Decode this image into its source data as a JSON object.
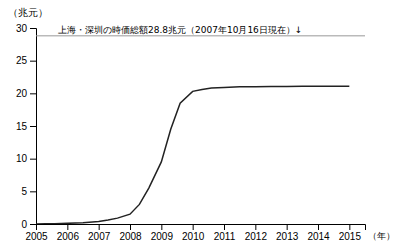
{
  "chart_data": {
    "type": "line",
    "x": [
      2005,
      2005.3,
      2005.6,
      2006,
      2006.5,
      2007,
      2007.3,
      2007.6,
      2008,
      2008.3,
      2008.6,
      2009,
      2009.3,
      2009.6,
      2010,
      2010.3,
      2010.6,
      2011,
      2011.5,
      2012,
      2012.5,
      2013,
      2013.5,
      2014,
      2014.5,
      2015
    ],
    "values": [
      0.0,
      0.02,
      0.04,
      0.1,
      0.2,
      0.4,
      0.6,
      0.9,
      1.5,
      3.0,
      5.5,
      9.5,
      14.5,
      18.5,
      20.3,
      20.6,
      20.8,
      20.9,
      21.0,
      21.0,
      21.05,
      21.05,
      21.07,
      21.08,
      21.1,
      21.1
    ],
    "color": "#222222",
    "hline": {
      "value": 28.8,
      "color": "#999999"
    },
    "annotation": "上海・深圳の時価総額28.8兆元（2007年10月16日現在）↓",
    "ylabel": "（兆元）",
    "xlabel": "（年）",
    "xlim": [
      2005,
      2015.5
    ],
    "xticks": [
      2005,
      2006,
      2007,
      2008,
      2009,
      2010,
      2011,
      2012,
      2013,
      2014,
      2015
    ],
    "ylim": [
      0,
      30
    ],
    "yticks": [
      0,
      5,
      10,
      15,
      20,
      25,
      30
    ],
    "grid": false
  }
}
